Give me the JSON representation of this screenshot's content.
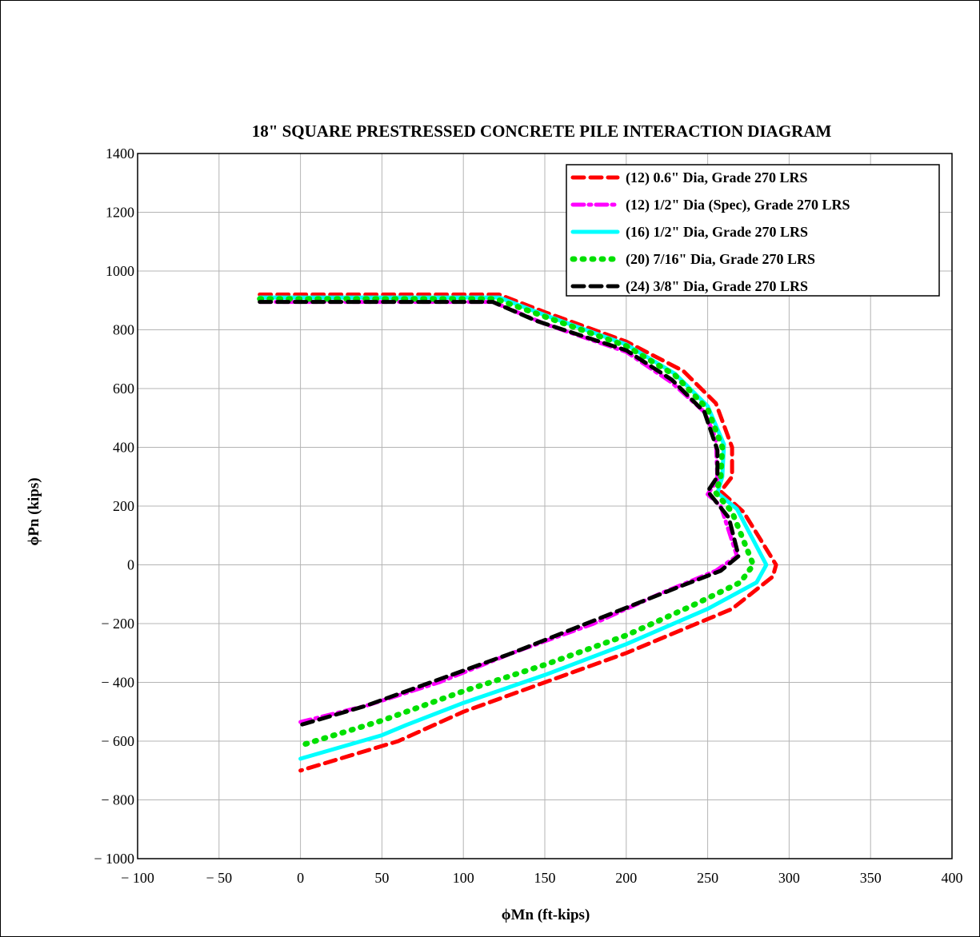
{
  "chart_data": {
    "type": "line",
    "title": "18\" SQUARE PRESTRESSED CONCRETE PILE INTERACTION DIAGRAM",
    "xlabel": "ϕMn (ft-kips)",
    "ylabel": "ϕPn (kips)",
    "xlim": [
      -100,
      400
    ],
    "ylim": [
      -1000,
      1400
    ],
    "xticks": [
      -100,
      -50,
      0,
      50,
      100,
      150,
      200,
      250,
      300,
      350,
      400
    ],
    "yticks": [
      -1000,
      -800,
      -600,
      -400,
      -200,
      0,
      200,
      400,
      600,
      800,
      1000,
      1200,
      1400
    ],
    "grid": true,
    "legend_position": "top-right",
    "series": [
      {
        "name": "(12) 0.6\" Dia, Grade 270 LRS",
        "color": "#ff0000",
        "style": "dashed",
        "points": [
          [
            -25,
            920
          ],
          [
            122,
            920
          ],
          [
            150,
            860
          ],
          [
            200,
            760
          ],
          [
            235,
            660
          ],
          [
            255,
            550
          ],
          [
            265,
            400
          ],
          [
            265,
            300
          ],
          [
            258,
            250
          ],
          [
            272,
            180
          ],
          [
            292,
            0
          ],
          [
            290,
            -40
          ],
          [
            265,
            -150
          ],
          [
            200,
            -300
          ],
          [
            150,
            -400
          ],
          [
            100,
            -500
          ],
          [
            60,
            -600
          ],
          [
            0,
            -700
          ]
        ]
      },
      {
        "name": "(12) 1/2\" Dia (Spec), Grade 270 LRS",
        "color": "#ff00ff",
        "style": "dashdot",
        "points": [
          [
            -25,
            895
          ],
          [
            118,
            895
          ],
          [
            150,
            820
          ],
          [
            200,
            725
          ],
          [
            228,
            620
          ],
          [
            248,
            520
          ],
          [
            255,
            430
          ],
          [
            256,
            290
          ],
          [
            250,
            240
          ],
          [
            258,
            200
          ],
          [
            268,
            30
          ],
          [
            255,
            -20
          ],
          [
            220,
            -100
          ],
          [
            180,
            -200
          ],
          [
            130,
            -300
          ],
          [
            85,
            -400
          ],
          [
            40,
            -480
          ],
          [
            0,
            -535
          ]
        ]
      },
      {
        "name": "(16) 1/2\" Dia, Grade 270 LRS",
        "color": "#00ffff",
        "style": "solid",
        "points": [
          [
            -25,
            910
          ],
          [
            122,
            910
          ],
          [
            150,
            850
          ],
          [
            200,
            750
          ],
          [
            230,
            650
          ],
          [
            250,
            540
          ],
          [
            260,
            410
          ],
          [
            259,
            300
          ],
          [
            256,
            245
          ],
          [
            268,
            190
          ],
          [
            286,
            0
          ],
          [
            280,
            -60
          ],
          [
            250,
            -150
          ],
          [
            200,
            -270
          ],
          [
            150,
            -375
          ],
          [
            100,
            -470
          ],
          [
            65,
            -545
          ],
          [
            50,
            -580
          ],
          [
            0,
            -660
          ]
        ]
      },
      {
        "name": "(20) 7/16\" Dia, Grade 270 LRS",
        "color": "#00e000",
        "style": "dotted",
        "points": [
          [
            -25,
            905
          ],
          [
            120,
            905
          ],
          [
            150,
            845
          ],
          [
            200,
            745
          ],
          [
            230,
            645
          ],
          [
            250,
            530
          ],
          [
            259,
            400
          ],
          [
            258,
            300
          ],
          [
            255,
            245
          ],
          [
            265,
            180
          ],
          [
            278,
            0
          ],
          [
            270,
            -60
          ],
          [
            240,
            -140
          ],
          [
            200,
            -240
          ],
          [
            150,
            -340
          ],
          [
            100,
            -430
          ],
          [
            50,
            -530
          ],
          [
            0,
            -615
          ]
        ]
      },
      {
        "name": "(24) 3/8\" Dia, Grade 270 LRS",
        "color": "#000000",
        "style": "dashed",
        "points": [
          [
            -25,
            895
          ],
          [
            118,
            895
          ],
          [
            145,
            830
          ],
          [
            200,
            730
          ],
          [
            228,
            630
          ],
          [
            248,
            520
          ],
          [
            256,
            390
          ],
          [
            256,
            300
          ],
          [
            250,
            250
          ],
          [
            263,
            160
          ],
          [
            269,
            30
          ],
          [
            258,
            -20
          ],
          [
            230,
            -80
          ],
          [
            180,
            -190
          ],
          [
            130,
            -300
          ],
          [
            80,
            -400
          ],
          [
            40,
            -480
          ],
          [
            0,
            -545
          ]
        ]
      }
    ]
  }
}
